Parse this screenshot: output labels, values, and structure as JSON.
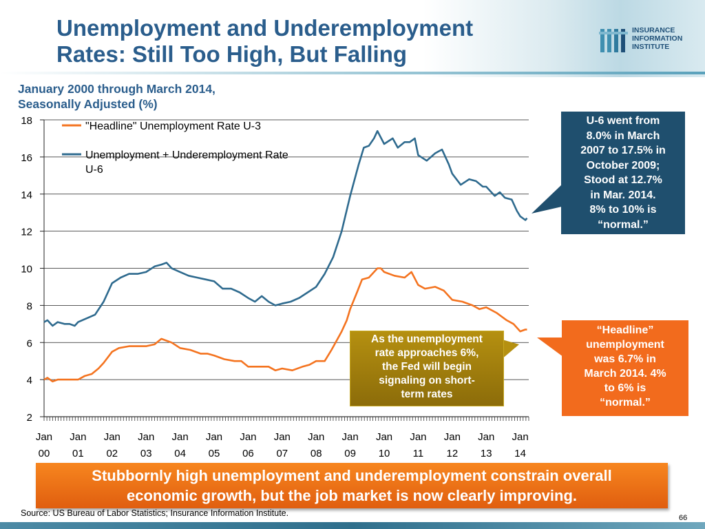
{
  "header": {
    "title_line1": "Unemployment and Underemployment",
    "title_line2": "Rates: Still Too High, But Falling",
    "logo": {
      "line1": "INSURANCE",
      "line2": "INFORMATION",
      "line3": "INSTITUTE",
      "icon": "iii-bars-logo"
    }
  },
  "chart_data": {
    "type": "line",
    "title": "",
    "subtitle_line1": "January 2000 through March 2014,",
    "subtitle_line2": "Seasonally Adjusted (%)",
    "ylim": [
      2,
      18
    ],
    "y_ticks": [
      2,
      4,
      6,
      8,
      10,
      12,
      14,
      16,
      18
    ],
    "x_range": [
      2000,
      2014.25
    ],
    "x_ticks": [
      {
        "year": 2000,
        "line1": "Jan",
        "line2": "00"
      },
      {
        "year": 2001,
        "line1": "Jan",
        "line2": "01"
      },
      {
        "year": 2002,
        "line1": "Jan",
        "line2": "02"
      },
      {
        "year": 2003,
        "line1": "Jan",
        "line2": "03"
      },
      {
        "year": 2004,
        "line1": "Jan",
        "line2": "04"
      },
      {
        "year": 2005,
        "line1": "Jan",
        "line2": "05"
      },
      {
        "year": 2006,
        "line1": "Jan",
        "line2": "06"
      },
      {
        "year": 2007,
        "line1": "Jan",
        "line2": "07"
      },
      {
        "year": 2008,
        "line1": "Jan",
        "line2": "08"
      },
      {
        "year": 2009,
        "line1": "Jan",
        "line2": "09"
      },
      {
        "year": 2010,
        "line1": "Jan",
        "line2": "10"
      },
      {
        "year": 2011,
        "line1": "Jan",
        "line2": "11"
      },
      {
        "year": 2012,
        "line1": "Jan",
        "line2": "12"
      },
      {
        "year": 2013,
        "line1": "Jan",
        "line2": "13"
      },
      {
        "year": 2014,
        "line1": "Jan",
        "line2": "14"
      }
    ],
    "grid": "horizontal",
    "legend_placement": "top-left",
    "series": [
      {
        "name": "\"Headline\" Unemployment Rate U-3",
        "color": "#f4731f",
        "points": [
          [
            2000.0,
            4.0
          ],
          [
            2000.1,
            4.1
          ],
          [
            2000.25,
            3.9
          ],
          [
            2000.4,
            4.0
          ],
          [
            2000.6,
            4.0
          ],
          [
            2000.75,
            4.0
          ],
          [
            2001.0,
            4.0
          ],
          [
            2001.2,
            4.2
          ],
          [
            2001.4,
            4.3
          ],
          [
            2001.6,
            4.6
          ],
          [
            2001.75,
            4.9
          ],
          [
            2002.0,
            5.5
          ],
          [
            2002.2,
            5.7
          ],
          [
            2002.5,
            5.8
          ],
          [
            2002.75,
            5.8
          ],
          [
            2003.0,
            5.8
          ],
          [
            2003.25,
            5.9
          ],
          [
            2003.45,
            6.2
          ],
          [
            2003.6,
            6.1
          ],
          [
            2003.75,
            6.0
          ],
          [
            2004.0,
            5.7
          ],
          [
            2004.3,
            5.6
          ],
          [
            2004.6,
            5.4
          ],
          [
            2004.8,
            5.4
          ],
          [
            2005.0,
            5.3
          ],
          [
            2005.3,
            5.1
          ],
          [
            2005.6,
            5.0
          ],
          [
            2005.8,
            5.0
          ],
          [
            2006.0,
            4.7
          ],
          [
            2006.3,
            4.7
          ],
          [
            2006.6,
            4.7
          ],
          [
            2006.8,
            4.5
          ],
          [
            2007.0,
            4.6
          ],
          [
            2007.3,
            4.5
          ],
          [
            2007.6,
            4.7
          ],
          [
            2007.8,
            4.8
          ],
          [
            2008.0,
            5.0
          ],
          [
            2008.25,
            5.0
          ],
          [
            2008.45,
            5.6
          ],
          [
            2008.6,
            6.1
          ],
          [
            2008.75,
            6.6
          ],
          [
            2008.9,
            7.2
          ],
          [
            2009.0,
            7.8
          ],
          [
            2009.2,
            8.7
          ],
          [
            2009.35,
            9.4
          ],
          [
            2009.55,
            9.5
          ],
          [
            2009.75,
            9.9
          ],
          [
            2009.8,
            10.0
          ],
          [
            2009.9,
            10.0
          ],
          [
            2010.0,
            9.8
          ],
          [
            2010.3,
            9.6
          ],
          [
            2010.6,
            9.5
          ],
          [
            2010.8,
            9.8
          ],
          [
            2011.0,
            9.1
          ],
          [
            2011.2,
            8.9
          ],
          [
            2011.5,
            9.0
          ],
          [
            2011.75,
            8.8
          ],
          [
            2012.0,
            8.3
          ],
          [
            2012.3,
            8.2
          ],
          [
            2012.6,
            8.0
          ],
          [
            2012.8,
            7.8
          ],
          [
            2013.0,
            7.9
          ],
          [
            2013.3,
            7.6
          ],
          [
            2013.6,
            7.2
          ],
          [
            2013.8,
            7.0
          ],
          [
            2014.0,
            6.6
          ],
          [
            2014.15,
            6.7
          ],
          [
            2014.2,
            6.7
          ]
        ]
      },
      {
        "name": "Unemployment + Underemployment Rate U-6",
        "color": "#2e6a8e",
        "points": [
          [
            2000.0,
            7.1
          ],
          [
            2000.1,
            7.2
          ],
          [
            2000.25,
            6.9
          ],
          [
            2000.4,
            7.1
          ],
          [
            2000.6,
            7.0
          ],
          [
            2000.75,
            7.0
          ],
          [
            2000.9,
            6.9
          ],
          [
            2001.0,
            7.1
          ],
          [
            2001.25,
            7.3
          ],
          [
            2001.5,
            7.5
          ],
          [
            2001.75,
            8.2
          ],
          [
            2002.0,
            9.2
          ],
          [
            2002.25,
            9.5
          ],
          [
            2002.5,
            9.7
          ],
          [
            2002.75,
            9.7
          ],
          [
            2003.0,
            9.8
          ],
          [
            2003.25,
            10.1
          ],
          [
            2003.45,
            10.2
          ],
          [
            2003.6,
            10.3
          ],
          [
            2003.75,
            10.0
          ],
          [
            2004.0,
            9.8
          ],
          [
            2004.25,
            9.6
          ],
          [
            2004.5,
            9.5
          ],
          [
            2004.75,
            9.4
          ],
          [
            2005.0,
            9.3
          ],
          [
            2005.25,
            8.9
          ],
          [
            2005.5,
            8.9
          ],
          [
            2005.75,
            8.7
          ],
          [
            2006.0,
            8.4
          ],
          [
            2006.2,
            8.2
          ],
          [
            2006.4,
            8.5
          ],
          [
            2006.6,
            8.2
          ],
          [
            2006.8,
            8.0
          ],
          [
            2007.0,
            8.1
          ],
          [
            2007.25,
            8.2
          ],
          [
            2007.5,
            8.4
          ],
          [
            2007.75,
            8.7
          ],
          [
            2008.0,
            9.0
          ],
          [
            2008.25,
            9.7
          ],
          [
            2008.5,
            10.6
          ],
          [
            2008.75,
            12.0
          ],
          [
            2009.0,
            13.9
          ],
          [
            2009.25,
            15.6
          ],
          [
            2009.4,
            16.5
          ],
          [
            2009.55,
            16.6
          ],
          [
            2009.7,
            17.0
          ],
          [
            2009.8,
            17.4
          ],
          [
            2010.0,
            16.7
          ],
          [
            2010.25,
            17.0
          ],
          [
            2010.4,
            16.5
          ],
          [
            2010.6,
            16.8
          ],
          [
            2010.75,
            16.8
          ],
          [
            2010.9,
            17.0
          ],
          [
            2011.0,
            16.1
          ],
          [
            2011.25,
            15.8
          ],
          [
            2011.5,
            16.2
          ],
          [
            2011.7,
            16.4
          ],
          [
            2011.9,
            15.6
          ],
          [
            2012.0,
            15.1
          ],
          [
            2012.25,
            14.5
          ],
          [
            2012.5,
            14.8
          ],
          [
            2012.7,
            14.7
          ],
          [
            2012.9,
            14.4
          ],
          [
            2013.0,
            14.4
          ],
          [
            2013.25,
            13.9
          ],
          [
            2013.4,
            14.1
          ],
          [
            2013.55,
            13.8
          ],
          [
            2013.75,
            13.7
          ],
          [
            2013.9,
            13.1
          ],
          [
            2014.0,
            12.8
          ],
          [
            2014.15,
            12.6
          ],
          [
            2014.2,
            12.7
          ]
        ]
      }
    ]
  },
  "callouts": {
    "u6": {
      "lines": [
        "U-6 went from",
        "8.0% in March",
        "2007 to 17.5% in",
        "October 2009;",
        "Stood at 12.7%",
        "in Mar. 2014.",
        "8% to 10% is",
        "“normal.”"
      ],
      "color": "#1f4f6e"
    },
    "u3": {
      "lines": [
        "“Headline”",
        "unemployment",
        "was 6.7% in",
        "March 2014. 4%",
        "to 6% is",
        "“normal.”"
      ],
      "color": "#f26b1d"
    },
    "fed": {
      "lines": [
        "As the unemployment",
        "rate approaches 6%,",
        "the Fed will begin",
        "signaling on short-",
        "term rates"
      ],
      "color": "#9c7a12"
    }
  },
  "conclusion": {
    "line1": "Stubbornly high unemployment and underemployment constrain overall",
    "line2": "economic growth, but the job market is now clearly improving."
  },
  "footer": {
    "source": "Source: US Bureau of Labor Statistics; Insurance Information Institute.",
    "page_number": "66"
  }
}
